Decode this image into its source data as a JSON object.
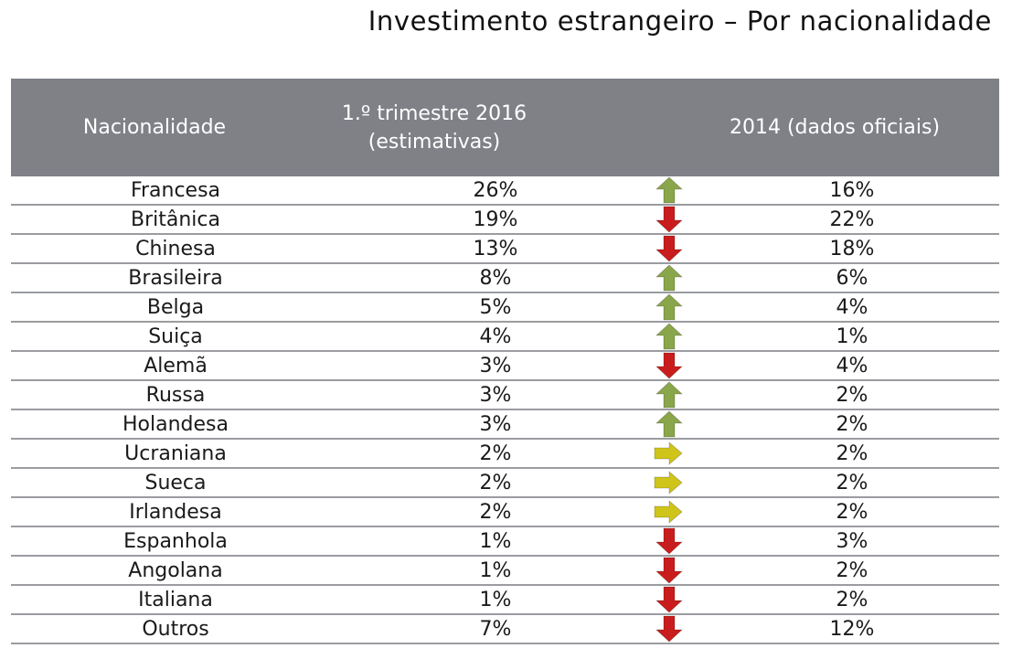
{
  "title": "Investimento estrangeiro – Por nacionalidade",
  "colors": {
    "header_bg": "#7f8187",
    "up": "#8aa64a",
    "down": "#c91d1d",
    "same": "#cfc41a"
  },
  "chart_data": {
    "type": "table",
    "title": "Investimento estrangeiro – Por nacionalidade",
    "columns": [
      "Nacionalidade",
      "1.º trimestre 2016 (estimativas)",
      "",
      "2014 (dados oficiais)"
    ],
    "header": {
      "nationality": "Nacionalidade",
      "q1_2016_line1": "1.º trimestre 2016",
      "q1_2016_line2": "(estimativas)",
      "y2014": "2014 (dados oficiais)"
    },
    "rows": [
      {
        "nationality": "Francesa",
        "q1_2016": "26%",
        "trend": "up",
        "y2014": "16%"
      },
      {
        "nationality": "Britânica",
        "q1_2016": "19%",
        "trend": "down",
        "y2014": "22%"
      },
      {
        "nationality": "Chinesa",
        "q1_2016": "13%",
        "trend": "down",
        "y2014": "18%"
      },
      {
        "nationality": "Brasileira",
        "q1_2016": "8%",
        "trend": "up",
        "y2014": "6%"
      },
      {
        "nationality": "Belga",
        "q1_2016": "5%",
        "trend": "up",
        "y2014": "4%"
      },
      {
        "nationality": "Suiça",
        "q1_2016": "4%",
        "trend": "up",
        "y2014": "1%"
      },
      {
        "nationality": "Alemã",
        "q1_2016": "3%",
        "trend": "down",
        "y2014": "4%"
      },
      {
        "nationality": "Russa",
        "q1_2016": "3%",
        "trend": "up",
        "y2014": "2%"
      },
      {
        "nationality": "Holandesa",
        "q1_2016": "3%",
        "trend": "up",
        "y2014": "2%"
      },
      {
        "nationality": "Ucraniana",
        "q1_2016": "2%",
        "trend": "same",
        "y2014": "2%"
      },
      {
        "nationality": "Sueca",
        "q1_2016": "2%",
        "trend": "same",
        "y2014": "2%"
      },
      {
        "nationality": "Irlandesa",
        "q1_2016": "2%",
        "trend": "same",
        "y2014": "2%"
      },
      {
        "nationality": "Espanhola",
        "q1_2016": "1%",
        "trend": "down",
        "y2014": "3%"
      },
      {
        "nationality": "Angolana",
        "q1_2016": "1%",
        "trend": "down",
        "y2014": "2%"
      },
      {
        "nationality": "Italiana",
        "q1_2016": "1%",
        "trend": "down",
        "y2014": "2%"
      },
      {
        "nationality": "Outros",
        "q1_2016": "7%",
        "trend": "down",
        "y2014": "12%"
      }
    ]
  }
}
